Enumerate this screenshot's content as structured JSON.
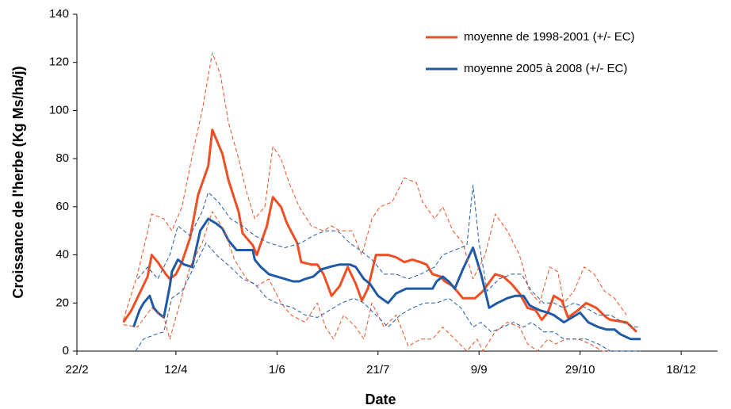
{
  "chart_data": {
    "type": "line",
    "xlabel": "Date",
    "ylabel": "Croissance de l'herbe (Kg Ms/ha/j)",
    "xlim": [
      53,
      370
    ],
    "ylim": [
      0,
      140
    ],
    "xticks": [
      {
        "value": 53,
        "label": "22/2"
      },
      {
        "value": 102,
        "label": "12/4"
      },
      {
        "value": 152,
        "label": "1/6"
      },
      {
        "value": 202,
        "label": "21/7"
      },
      {
        "value": 252,
        "label": "9/9"
      },
      {
        "value": 302,
        "label": "29/10"
      },
      {
        "value": 352,
        "label": "18/12"
      }
    ],
    "yticks": [
      0,
      20,
      40,
      60,
      80,
      100,
      120,
      140
    ],
    "legend": "top-right",
    "series": [
      {
        "name": "moyenne de 1998-2001 (+/- EC)",
        "color": "#f04e23",
        "width": 3,
        "dash": false,
        "x": [
          76,
          80,
          88,
          90,
          93,
          97,
          99,
          102,
          105,
          109,
          113,
          118,
          120,
          125,
          128,
          133,
          135,
          140,
          142,
          147,
          150,
          154,
          157,
          162,
          164,
          169,
          172,
          175,
          179,
          183,
          187,
          191,
          194,
          197,
          201,
          207,
          211,
          215,
          219,
          223,
          226,
          229,
          233,
          235,
          239,
          244,
          250,
          254,
          260,
          264,
          268,
          272,
          276,
          280,
          283,
          286,
          289,
          293,
          296,
          301,
          305,
          310,
          315,
          317,
          325,
          330
        ],
        "values": [
          12,
          17,
          31,
          40,
          37,
          32,
          30,
          32,
          37,
          47,
          65,
          77,
          92,
          82,
          71,
          58,
          49,
          44,
          40,
          52,
          64,
          60,
          53,
          45,
          37,
          36,
          36,
          32,
          23,
          27,
          35,
          28,
          21,
          26,
          40,
          40,
          39,
          37,
          38,
          37,
          36,
          32,
          31,
          29,
          27,
          22,
          22,
          25,
          32,
          31,
          28,
          24,
          18,
          17,
          13,
          16,
          23,
          21,
          14,
          17,
          20,
          18,
          14,
          13,
          12,
          8
        ]
      },
      {
        "name": "moyenne 2005 à 2008 (+/- EC)",
        "color": "#1f5aa6",
        "width": 3,
        "dash": false,
        "x": [
          81,
          84,
          86,
          89,
          91,
          93,
          96,
          99,
          100,
          103,
          106,
          110,
          114,
          118,
          122,
          125,
          128,
          132,
          140,
          141,
          144,
          148,
          152,
          156,
          160,
          163,
          166,
          170,
          174,
          178,
          183,
          188,
          191,
          195,
          198,
          202,
          207,
          211,
          216,
          223,
          229,
          231,
          234,
          237,
          240,
          244,
          249,
          253,
          257,
          261,
          266,
          270,
          274,
          277,
          282,
          286,
          289,
          294,
          298,
          302,
          306,
          311,
          315,
          319,
          322,
          327,
          332
        ],
        "values": [
          10,
          17,
          20,
          23,
          18,
          16,
          14,
          27,
          33,
          38,
          36,
          35,
          50,
          55,
          53,
          51,
          46,
          42,
          42,
          38,
          35,
          32,
          31,
          30,
          29,
          29,
          30,
          31,
          34,
          35,
          36,
          36,
          35,
          30,
          28,
          23,
          20,
          24,
          26,
          26,
          26,
          29,
          31,
          29,
          26,
          34,
          43,
          32,
          18,
          20,
          22,
          23,
          23,
          19,
          17,
          16,
          15,
          12,
          14,
          16,
          12,
          10,
          9,
          9,
          7,
          5,
          5
        ]
      },
      {
        "color": "#f04e23",
        "width": 1,
        "dash": true,
        "x": [
          76,
          83,
          90,
          96,
          100,
          105,
          111,
          115,
          120,
          124,
          128,
          133,
          137,
          141,
          146,
          150,
          154,
          158,
          163,
          169,
          175,
          179,
          183,
          189,
          194,
          199,
          203,
          209,
          215,
          221,
          224,
          230,
          234,
          239,
          244,
          249,
          255,
          260,
          266,
          272,
          277,
          282,
          287,
          291,
          294,
          299,
          304,
          309,
          314,
          319,
          325
        ],
        "values": [
          13,
          32,
          57,
          55,
          50,
          60,
          85,
          100,
          124,
          115,
          95,
          80,
          66,
          55,
          60,
          85,
          80,
          70,
          60,
          52,
          50,
          52,
          50,
          50,
          40,
          55,
          60,
          62,
          72,
          70,
          62,
          55,
          60,
          50,
          45,
          30,
          40,
          57,
          50,
          40,
          25,
          20,
          35,
          33,
          20,
          25,
          35,
          32,
          25,
          22,
          15
        ]
      },
      {
        "color": "#f04e23",
        "width": 1,
        "dash": true,
        "x": [
          76,
          83,
          90,
          96,
          99,
          104,
          109,
          115,
          120,
          126,
          131,
          137,
          142,
          148,
          154,
          159,
          166,
          172,
          176,
          180,
          185,
          191,
          195,
          199,
          205,
          211,
          217,
          223,
          229,
          234,
          240,
          246,
          251,
          254,
          260,
          266,
          272,
          276,
          281,
          286,
          290,
          295,
          301,
          307,
          313,
          321
        ],
        "values": [
          11,
          10,
          18,
          14,
          5,
          20,
          35,
          45,
          58,
          50,
          38,
          30,
          27,
          30,
          20,
          15,
          12,
          20,
          10,
          5,
          15,
          10,
          5,
          20,
          10,
          15,
          2,
          5,
          5,
          10,
          5,
          0,
          5,
          0,
          8,
          12,
          10,
          3,
          0,
          5,
          3,
          5,
          5,
          3,
          0,
          0
        ]
      },
      {
        "color": "#1f5aa6",
        "width": 1,
        "dash": true,
        "x": [
          83,
          88,
          93,
          99,
          103,
          109,
          115,
          118,
          123,
          129,
          135,
          141,
          148,
          156,
          164,
          170,
          176,
          182,
          188,
          193,
          199,
          205,
          211,
          217,
          223,
          230,
          234,
          240,
          246,
          249,
          252,
          256,
          262,
          268,
          273,
          278,
          284,
          289,
          294,
          299,
          305,
          311,
          317,
          323,
          329,
          332
        ],
        "values": [
          30,
          35,
          30,
          40,
          52,
          48,
          58,
          66,
          62,
          55,
          52,
          48,
          45,
          43,
          45,
          48,
          50,
          50,
          45,
          42,
          38,
          32,
          32,
          30,
          32,
          35,
          40,
          42,
          44,
          69,
          45,
          25,
          30,
          32,
          32,
          25,
          20,
          20,
          18,
          20,
          18,
          15,
          15,
          12,
          10,
          10
        ]
      },
      {
        "color": "#1f5aa6",
        "width": 1,
        "dash": true,
        "x": [
          82,
          86,
          92,
          96,
          100,
          105,
          111,
          117,
          122,
          129,
          135,
          141,
          147,
          152,
          160,
          166,
          172,
          178,
          184,
          190,
          195,
          201,
          207,
          213,
          219,
          225,
          231,
          237,
          243,
          249,
          253,
          258,
          264,
          269,
          274,
          278,
          284,
          289,
          294,
          299,
          305,
          311,
          317,
          323,
          329,
          332
        ],
        "values": [
          0,
          5,
          7,
          8,
          22,
          25,
          35,
          45,
          40,
          35,
          30,
          28,
          22,
          20,
          18,
          15,
          14,
          17,
          20,
          22,
          20,
          15,
          10,
          15,
          18,
          20,
          20,
          22,
          18,
          10,
          12,
          8,
          10,
          12,
          10,
          12,
          8,
          8,
          5,
          5,
          5,
          3,
          0,
          0,
          0,
          0
        ]
      }
    ]
  }
}
